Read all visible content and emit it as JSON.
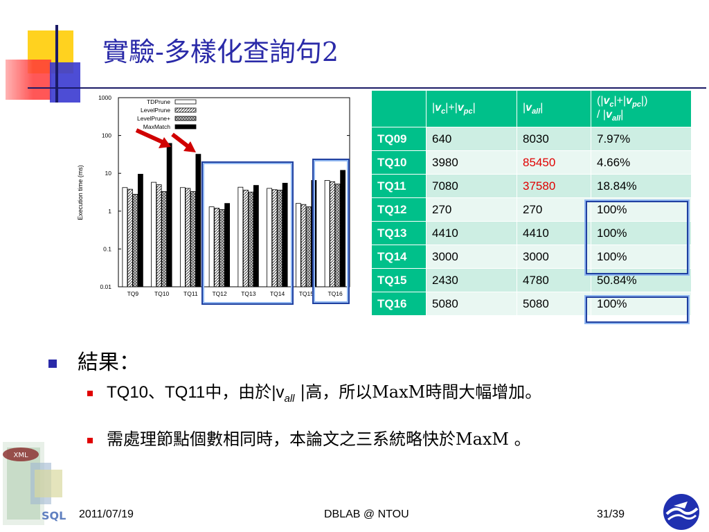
{
  "slide": {
    "title": "實驗-多樣化查詢句2",
    "footer_date": "2011/07/19",
    "footer_center": "DBLAB @ NTOU",
    "footer_page": "31/39"
  },
  "table": {
    "headers": [
      "",
      "|v_c|+|v_pc|",
      "|v_all|",
      "(|v_c|+|v_pc|) / |v_all|"
    ],
    "rows": [
      {
        "q": "TQ09",
        "a": "640",
        "b": "8030",
        "r": "7.97%"
      },
      {
        "q": "TQ10",
        "a": "3980",
        "b": "85450",
        "r": "4.66%"
      },
      {
        "q": "TQ11",
        "a": "7080",
        "b": "37580",
        "r": "18.84%"
      },
      {
        "q": "TQ12",
        "a": "270",
        "b": "270",
        "r": "100%"
      },
      {
        "q": "TQ13",
        "a": "4410",
        "b": "4410",
        "r": "100%"
      },
      {
        "q": "TQ14",
        "a": "3000",
        "b": "3000",
        "r": "100%"
      },
      {
        "q": "TQ15",
        "a": "2430",
        "b": "4780",
        "r": "50.84%"
      },
      {
        "q": "TQ16",
        "a": "5080",
        "b": "5080",
        "r": "100%"
      }
    ],
    "highlight_color": "#e00000"
  },
  "bullets": {
    "heading": "結果：",
    "item1_pre": "TQ10、TQ11中，由於|v",
    "item1_sub": "all",
    "item1_post": " |高，所以MaxM時間大幅增加。",
    "item2": "需處理節點個數相同時，本論文之三系統略快於MaxM 。"
  },
  "chart_data": {
    "type": "bar",
    "ylabel": "Execution time (ms)",
    "yscale": "log",
    "ylim": [
      0.01,
      1000
    ],
    "yticks": [
      "0.01",
      "0.1",
      "1",
      "10",
      "100",
      "1000"
    ],
    "categories": [
      "TQ9",
      "TQ10",
      "TQ11",
      "TQ12",
      "TQ13",
      "TQ14",
      "TQ15",
      "TQ16"
    ],
    "series": [
      {
        "name": "TDPrune",
        "pattern": "white",
        "values": [
          4.2,
          5.8,
          4.2,
          1.3,
          4.3,
          4.0,
          1.6,
          6.5
        ]
      },
      {
        "name": "LevelPrune",
        "pattern": "hatch",
        "values": [
          3.8,
          5.0,
          4.0,
          1.2,
          3.6,
          3.7,
          1.5,
          6.0
        ]
      },
      {
        "name": "LevelPrune+",
        "pattern": "cross",
        "values": [
          2.8,
          3.3,
          3.3,
          1.1,
          3.2,
          3.6,
          1.3,
          5.2
        ]
      },
      {
        "name": "MaxMatch",
        "pattern": "black",
        "values": [
          9.5,
          62,
          32,
          1.6,
          4.8,
          5.5,
          6.5,
          12
        ]
      }
    ],
    "legend": "top-center",
    "legend_labels": [
      "TDPrune",
      "LevelPrune",
      "LevelPrune+",
      "MaxMatch"
    ]
  }
}
